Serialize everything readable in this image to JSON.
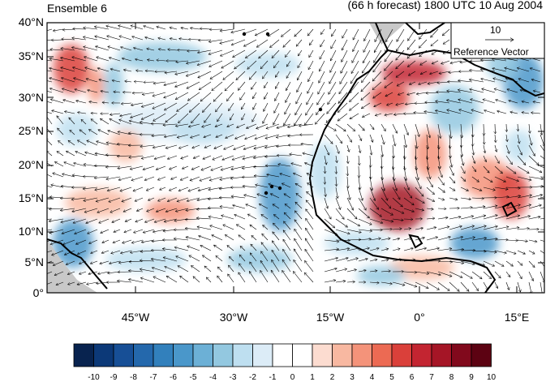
{
  "header": {
    "left_title": "Ensemble 6",
    "right_title": "(66 h forecast) 1800 UTC 10 Aug 2004"
  },
  "reference_vector": {
    "magnitude": "10",
    "label": "Reference Vector"
  },
  "latitude_labels": [
    "40°N",
    "35°N",
    "30°N",
    "25°N",
    "20°N",
    "15°N",
    "10°N",
    "5°N",
    "0°"
  ],
  "longitude_labels": [
    "45°W",
    "30°W",
    "15°W",
    "0°",
    "15°E"
  ],
  "colorbar": {
    "labels": [
      "-10",
      "-9",
      "-8",
      "-7",
      "-6",
      "-5",
      "-4",
      "-3",
      "-2",
      "-1",
      "0",
      "1",
      "2",
      "3",
      "4",
      "5",
      "6",
      "7",
      "8",
      "9",
      "10"
    ],
    "colors": [
      "#08234f",
      "#0c3978",
      "#174f96",
      "#2468ac",
      "#3280bc",
      "#4a97ca",
      "#6cb0d6",
      "#93c8e0",
      "#bedff0",
      "#dcecf7",
      "#ffffff",
      "#ffffff",
      "#fcdcd0",
      "#f8b8a1",
      "#f4937a",
      "#ec6a53",
      "#da403a",
      "#c32531",
      "#a51526",
      "#81091c",
      "#5c0212"
    ]
  },
  "colors": {
    "land_outline": "#000000",
    "missing": "#c8c8c8"
  }
}
